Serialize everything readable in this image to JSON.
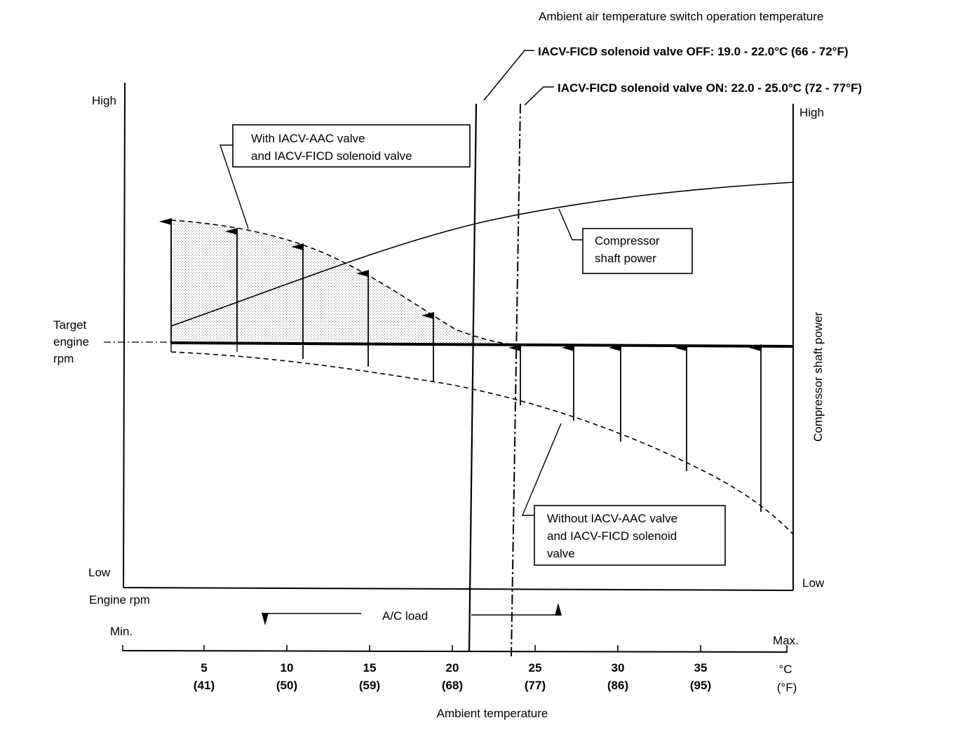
{
  "header": {
    "switch_title": "Ambient air temperature switch operation temperature",
    "off_label": "IACV-FICD solenoid valve OFF: 19.0 - 22.0°C (66 - 72°F)",
    "on_label": "IACV-FICD solenoid valve ON: 22.0 - 25.0°C (72 - 77°F)"
  },
  "left_axis": {
    "high": "High",
    "low": "Low",
    "title": "Engine rpm",
    "target_line1": "Target",
    "target_line2": "engine",
    "target_line3": "rpm"
  },
  "right_axis": {
    "high": "High",
    "low": "Low",
    "title": "Compressor shaft power"
  },
  "callouts": {
    "with_line1": "With IACV-AAC valve",
    "with_line2": "and IACV-FICD solenoid valve",
    "compressor_line1": "Compressor",
    "compressor_line2": "shaft power",
    "without_line1": "Without IACV-AAC valve",
    "without_line2": "and IACV-FICD solenoid",
    "without_line3": "valve"
  },
  "load": {
    "label": "A/C load",
    "min": "Min.",
    "max": "Max."
  },
  "temp_axis": {
    "title": "Ambient temperature",
    "ticks_c": [
      "5",
      "10",
      "15",
      "20",
      "25",
      "30",
      "35"
    ],
    "ticks_f": [
      "(41)",
      "(50)",
      "(59)",
      "(68)",
      "(77)",
      "(86)",
      "(95)"
    ],
    "unit_c": "°C",
    "unit_f": "(°F)"
  }
}
